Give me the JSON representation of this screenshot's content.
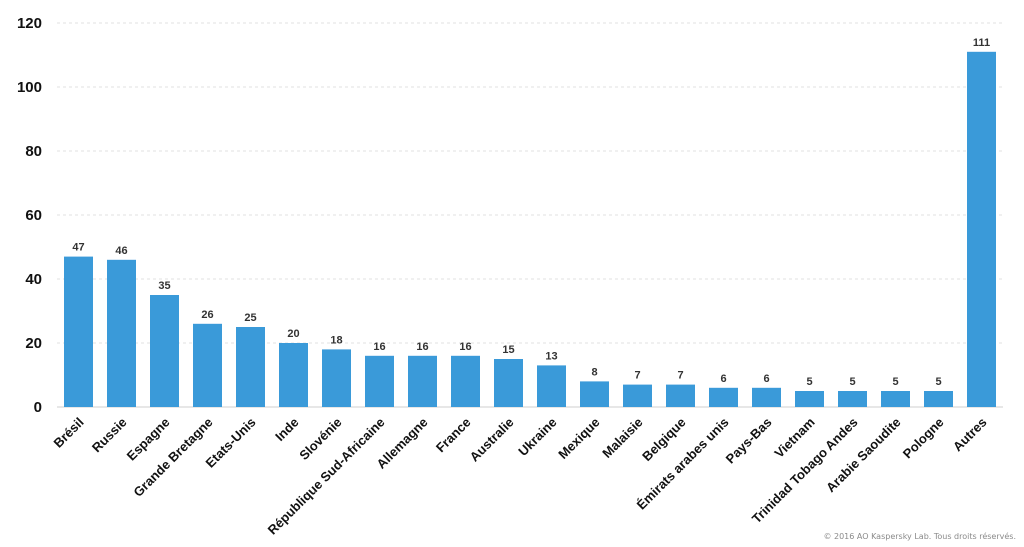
{
  "chart_data": {
    "type": "bar",
    "categories": [
      "Brésil",
      "Russie",
      "Espagne",
      "Grande Bretagne",
      "Etats-Unis",
      "Inde",
      "Slovénie",
      "République Sud-Africaine",
      "Allemagne",
      "France",
      "Australie",
      "Ukraine",
      "Mexique",
      "Malaisie",
      "Belgique",
      "Émirats arabes unis",
      "Pays-Bas",
      "Vietnam",
      "Trinidad Tobago Andes",
      "Arabie Saoudite",
      "Pologne",
      "Autres"
    ],
    "values": [
      47,
      46,
      35,
      26,
      25,
      20,
      18,
      16,
      16,
      16,
      15,
      13,
      8,
      7,
      7,
      6,
      6,
      5,
      5,
      5,
      5,
      111
    ],
    "yticks": [
      0,
      20,
      40,
      60,
      80,
      100,
      120
    ],
    "ylim": [
      0,
      120
    ],
    "grid": true,
    "bar_color": "#3a9ad9"
  },
  "footer": {
    "copyright": "© 2016 AO Kaspersky Lab. Tous droits réservés."
  }
}
